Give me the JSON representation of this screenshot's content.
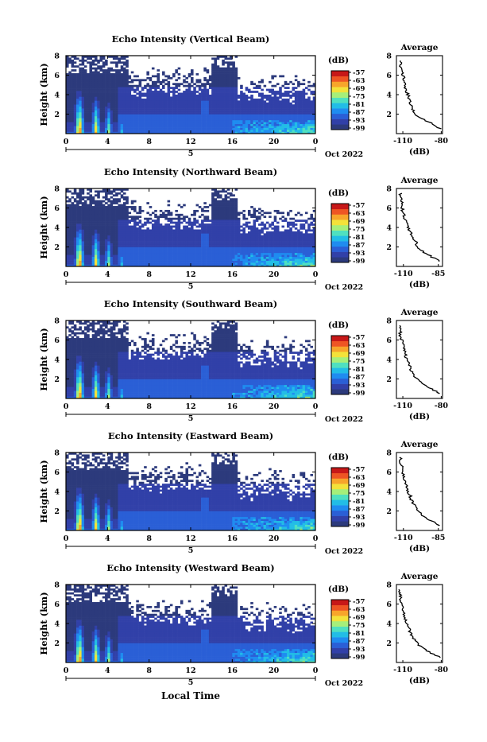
{
  "colors": {
    "scale": [
      "#2c3a7c",
      "#3140a8",
      "#2a5fd6",
      "#1f8cf0",
      "#22bde6",
      "#4fe0c0",
      "#a6ef7a",
      "#f3e23a",
      "#f7a52b",
      "#ee5524",
      "#c71818"
    ],
    "nodata": "#ffffff",
    "line": "#000000"
  },
  "colorbar": {
    "unit_label": "(dB)",
    "ticks": [
      "-57",
      "-63",
      "-69",
      "-75",
      "-81",
      "-87",
      "-93",
      "-99"
    ]
  },
  "common": {
    "ylabel": "Height (km)",
    "x_ticks": [
      "0",
      "4",
      "8",
      "12",
      "16",
      "20",
      "0"
    ],
    "date_tick": "5",
    "date_label": "Oct 2022",
    "xlabel": "Local Time",
    "avg_title": "Average",
    "avg_xlabel": "(dB)"
  },
  "chart_data": [
    {
      "type": "heatmap",
      "title": "Echo Intensity (Vertical Beam)",
      "ylabel": "Height (km)",
      "y_ticks": [
        "8",
        "6",
        "4",
        "2"
      ],
      "ylim": [
        0,
        8
      ],
      "x_ticks": [
        "0",
        "4",
        "8",
        "12",
        "16",
        "20",
        "0"
      ],
      "date_label": "Oct 2022",
      "zlim": [
        -99,
        -51
      ],
      "profile": {
        "title": "Average",
        "xlabel": "(dB)",
        "x_ticks": [
          "-110",
          "-80"
        ],
        "xlim": [
          -115,
          -79
        ],
        "y_ticks": [
          "8",
          "6",
          "4",
          "2"
        ],
        "heights": [
          0.5,
          1.0,
          1.5,
          2.0,
          2.5,
          3.0,
          3.5,
          4.0,
          4.5,
          5.0,
          5.5,
          6.0,
          6.5,
          7.0,
          7.5
        ],
        "values": [
          -81,
          -87,
          -95,
          -100,
          -102,
          -104,
          -105,
          -106,
          -108,
          -108,
          -109,
          -110,
          -111,
          -112,
          -112
        ]
      }
    },
    {
      "type": "heatmap",
      "title": "Echo Intensity (Northward Beam)",
      "ylabel": "Height (km)",
      "y_ticks": [
        "8",
        "6",
        "4",
        "2"
      ],
      "ylim": [
        0,
        8
      ],
      "x_ticks": [
        "0",
        "4",
        "8",
        "12",
        "16",
        "20",
        "0"
      ],
      "date_label": "Oct 2022",
      "zlim": [
        -99,
        -51
      ],
      "profile": {
        "title": "Average",
        "xlabel": "(dB)",
        "x_ticks": [
          "-110",
          "-85"
        ],
        "xlim": [
          -115,
          -82
        ],
        "y_ticks": [
          "8",
          "6",
          "4",
          "2"
        ],
        "heights": [
          0.5,
          1.0,
          1.5,
          2.0,
          2.5,
          3.0,
          3.5,
          4.0,
          4.5,
          5.0,
          5.5,
          6.0,
          6.5,
          7.0,
          7.5
        ],
        "values": [
          -84,
          -90,
          -96,
          -100,
          -101,
          -103,
          -105,
          -107,
          -108,
          -109,
          -110,
          -111,
          -111,
          -112,
          -112
        ]
      }
    },
    {
      "type": "heatmap",
      "title": "Echo Intensity (Southward Beam)",
      "ylabel": "Height (km)",
      "y_ticks": [
        "8",
        "6",
        "4",
        "2"
      ],
      "ylim": [
        0,
        8
      ],
      "x_ticks": [
        "0",
        "4",
        "8",
        "12",
        "16",
        "20",
        "0"
      ],
      "date_label": "Oct 2022",
      "zlim": [
        -99,
        -51
      ],
      "profile": {
        "title": "Average",
        "xlabel": "(dB)",
        "x_ticks": [
          "-110",
          "-80"
        ],
        "xlim": [
          -115,
          -79
        ],
        "y_ticks": [
          "8",
          "6",
          "4",
          "2"
        ],
        "heights": [
          0.5,
          1.0,
          1.5,
          2.0,
          2.5,
          3.0,
          3.5,
          4.0,
          4.5,
          5.0,
          5.5,
          6.0,
          6.5,
          7.0,
          7.5
        ],
        "values": [
          -81,
          -88,
          -95,
          -99,
          -102,
          -104,
          -105,
          -107,
          -108,
          -109,
          -110,
          -111,
          -112,
          -112,
          -113
        ]
      }
    },
    {
      "type": "heatmap",
      "title": "Echo Intensity (Eastward Beam)",
      "ylabel": "Height (km)",
      "y_ticks": [
        "8",
        "6",
        "4",
        "2"
      ],
      "ylim": [
        0,
        8
      ],
      "x_ticks": [
        "0",
        "4",
        "8",
        "12",
        "16",
        "20",
        "0"
      ],
      "date_label": "Oct 2022",
      "zlim": [
        -99,
        -51
      ],
      "profile": {
        "title": "Average",
        "xlabel": "(dB)",
        "x_ticks": [
          "-110",
          "-85"
        ],
        "xlim": [
          -115,
          -82
        ],
        "y_ticks": [
          "8",
          "6",
          "4",
          "2"
        ],
        "heights": [
          0.5,
          1.0,
          1.5,
          2.0,
          2.5,
          3.0,
          3.5,
          4.0,
          4.5,
          5.0,
          5.5,
          6.0,
          6.5,
          7.0,
          7.5
        ],
        "values": [
          -84,
          -90,
          -96,
          -100,
          -102,
          -104,
          -105,
          -107,
          -108,
          -109,
          -110,
          -111,
          -111,
          -112,
          -112
        ]
      }
    },
    {
      "type": "heatmap",
      "title": "Echo Intensity (Westward Beam)",
      "ylabel": "Height (km)",
      "y_ticks": [
        "8",
        "6",
        "4",
        "2"
      ],
      "ylim": [
        0,
        8
      ],
      "x_ticks": [
        "0",
        "4",
        "8",
        "12",
        "16",
        "20",
        "0"
      ],
      "date_label": "Oct 2022",
      "xlabel": "Local Time",
      "zlim": [
        -99,
        -51
      ],
      "profile": {
        "title": "Average",
        "xlabel": "(dB)",
        "x_ticks": [
          "-110",
          "-80"
        ],
        "xlim": [
          -115,
          -79
        ],
        "y_ticks": [
          "8",
          "6",
          "4",
          "2"
        ],
        "heights": [
          0.5,
          1.0,
          1.5,
          2.0,
          2.5,
          3.0,
          3.5,
          4.0,
          4.5,
          5.0,
          5.5,
          6.0,
          6.5,
          7.0,
          7.5
        ],
        "values": [
          -81,
          -88,
          -95,
          -99,
          -102,
          -104,
          -105,
          -107,
          -108,
          -109,
          -110,
          -111,
          -112,
          -112,
          -113
        ]
      }
    }
  ]
}
